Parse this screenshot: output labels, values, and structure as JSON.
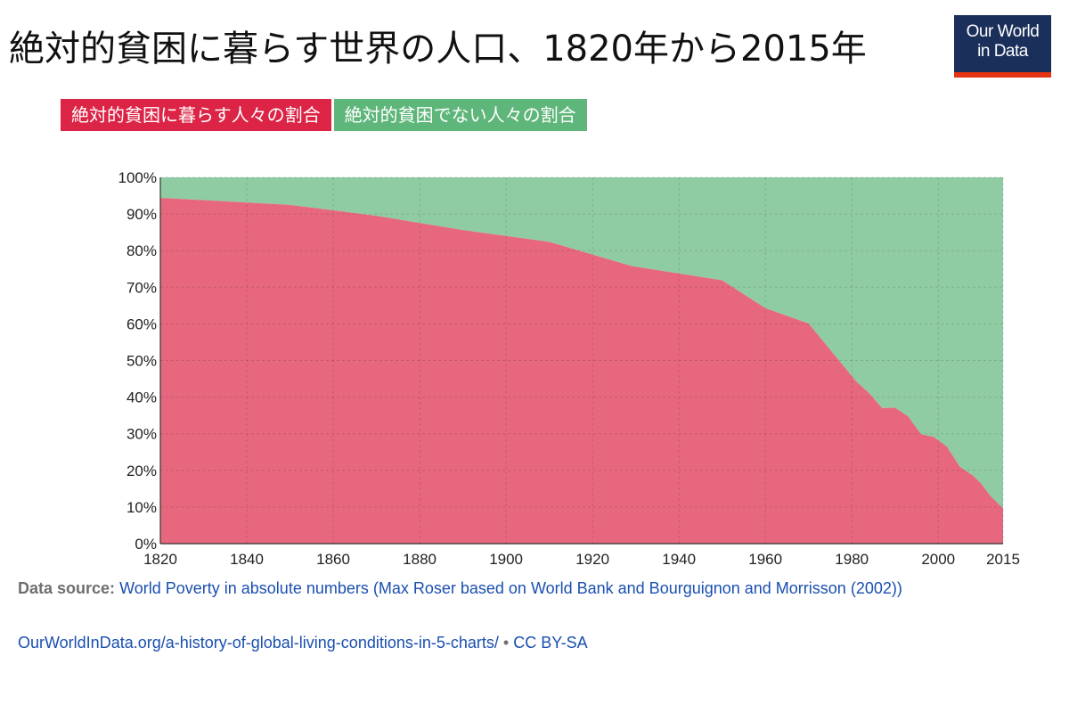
{
  "header": {
    "title": "絶対的貧困に暮らす世界の人口、1820年から2015年",
    "logo_line1": "Our World",
    "logo_line2": "in Data"
  },
  "colors": {
    "poverty_legend": "#dc2446",
    "not_poverty_legend": "#5fb67a",
    "poverty_area": "#e6677e",
    "not_poverty_area": "#8fcca3",
    "logo_bg": "#1a2f5a",
    "logo_bar": "#e63312"
  },
  "chart_data": {
    "type": "area",
    "stacked": true,
    "x": [
      1820,
      1850,
      1870,
      1890,
      1910,
      1929,
      1950,
      1960,
      1970,
      1981,
      1984,
      1987,
      1990,
      1993,
      1996,
      1999,
      2002,
      2005,
      2008,
      2010,
      2012,
      2015
    ],
    "series": [
      {
        "name": "絶対的貧困に暮らす人々の割合",
        "values": [
          94.4,
          92.5,
          89.5,
          85.6,
          82.4,
          75.8,
          71.9,
          64.3,
          60.1,
          44.3,
          41.1,
          37.0,
          37.1,
          34.8,
          29.9,
          29.1,
          26.5,
          21.0,
          18.6,
          16.3,
          13.1,
          9.6
        ]
      },
      {
        "name": "絶対的貧困でない人々の割合",
        "values": [
          5.6,
          7.5,
          10.5,
          14.4,
          17.6,
          24.2,
          28.1,
          35.7,
          39.9,
          55.7,
          58.9,
          63.0,
          62.9,
          65.2,
          70.1,
          70.9,
          73.5,
          79.0,
          81.4,
          83.7,
          86.9,
          90.4
        ]
      }
    ],
    "xlim": [
      1820,
      2015
    ],
    "ylim": [
      0,
      100
    ],
    "x_ticks": [
      1820,
      1840,
      1860,
      1880,
      1900,
      1920,
      1940,
      1960,
      1980,
      2000,
      2015
    ],
    "y_ticks": [
      0,
      10,
      20,
      30,
      40,
      50,
      60,
      70,
      80,
      90,
      100
    ],
    "y_tick_labels": [
      "0%",
      "10%",
      "20%",
      "30%",
      "40%",
      "50%",
      "60%",
      "70%",
      "80%",
      "90%",
      "100%"
    ],
    "grid": true,
    "legend_position": "top-left"
  },
  "footer": {
    "source_label": "Data source:",
    "source_text": "World Poverty in absolute numbers (Max Roser based on World Bank and Bourguignon and Morrisson (2002))",
    "url": "OurWorldInData.org/a-history-of-global-living-conditions-in-5-charts/",
    "separator": "•",
    "license": "CC BY-SA"
  }
}
